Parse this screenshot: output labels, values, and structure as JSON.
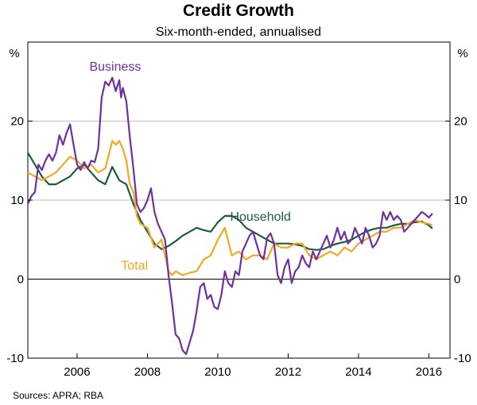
{
  "chart_data": {
    "type": "line",
    "title": "Credit Growth",
    "subtitle": "Six-month-ended, annualised",
    "unit_label_left": "%",
    "unit_label_right": "%",
    "ylim": [
      -10,
      30
    ],
    "yticks": [
      -10,
      0,
      10,
      20
    ],
    "y_tick_labels": [
      "-10",
      "0",
      "10",
      "20"
    ],
    "xlim": [
      2004.6,
      2016.6
    ],
    "xticks": [
      2006,
      2008,
      2010,
      2012,
      2014,
      2016
    ],
    "x_tick_labels": [
      "2006",
      "2008",
      "2010",
      "2012",
      "2014",
      "2016"
    ],
    "gridlines": [
      10,
      20
    ],
    "zero_line": 0,
    "source": "Sources:   APRA; RBA",
    "series": [
      {
        "name": "Business",
        "color": "#7030a0",
        "x": [
          2004.6,
          2004.7,
          2004.8,
          2004.9,
          2005.0,
          2005.1,
          2005.2,
          2005.3,
          2005.4,
          2005.5,
          2005.6,
          2005.7,
          2005.8,
          2005.9,
          2006.0,
          2006.1,
          2006.2,
          2006.3,
          2006.4,
          2006.5,
          2006.6,
          2006.7,
          2006.8,
          2006.9,
          2007.0,
          2007.1,
          2007.2,
          2007.25,
          2007.3,
          2007.4,
          2007.5,
          2007.6,
          2007.7,
          2007.8,
          2007.9,
          2008.0,
          2008.1,
          2008.2,
          2008.3,
          2008.4,
          2008.5,
          2008.6,
          2008.7,
          2008.8,
          2008.9,
          2009.0,
          2009.1,
          2009.2,
          2009.3,
          2009.4,
          2009.5,
          2009.6,
          2009.7,
          2009.8,
          2009.9,
          2010.0,
          2010.1,
          2010.2,
          2010.3,
          2010.4,
          2010.5,
          2010.6,
          2010.7,
          2010.8,
          2010.9,
          2011.0,
          2011.1,
          2011.2,
          2011.3,
          2011.4,
          2011.5,
          2011.6,
          2011.7,
          2011.8,
          2011.9,
          2012.0,
          2012.1,
          2012.2,
          2012.3,
          2012.4,
          2012.5,
          2012.6,
          2012.7,
          2012.8,
          2012.9,
          2013.0,
          2013.1,
          2013.2,
          2013.3,
          2013.4,
          2013.5,
          2013.6,
          2013.7,
          2013.8,
          2013.9,
          2014.0,
          2014.1,
          2014.2,
          2014.3,
          2014.4,
          2014.5,
          2014.6,
          2014.7,
          2014.8,
          2014.9,
          2015.0,
          2015.1,
          2015.2,
          2015.3,
          2015.4,
          2015.5,
          2015.6,
          2015.7,
          2015.8,
          2015.9,
          2016.0,
          2016.1
        ],
        "values": [
          9.5,
          10.5,
          11.0,
          14.5,
          13.8,
          15.0,
          15.8,
          15.0,
          16.0,
          18.2,
          17.0,
          18.5,
          19.6,
          17.0,
          14.5,
          13.8,
          14.8,
          14.0,
          15.0,
          14.8,
          16.5,
          23.0,
          25.0,
          24.5,
          25.5,
          23.8,
          25.2,
          23.0,
          24.2,
          22.5,
          18.0,
          14.0,
          9.5,
          8.5,
          9.0,
          10.0,
          11.5,
          8.5,
          7.0,
          6.0,
          5.0,
          0.5,
          -3.0,
          -7.0,
          -7.5,
          -9.0,
          -9.5,
          -8.0,
          -6.5,
          -4.0,
          -1.0,
          -0.5,
          -2.5,
          -2.0,
          -3.5,
          -3.8,
          -2.0,
          1.0,
          -0.5,
          -1.0,
          1.0,
          0.5,
          3.5,
          4.5,
          5.5,
          6.0,
          4.5,
          3.0,
          2.5,
          5.2,
          5.8,
          4.5,
          0.5,
          -0.5,
          1.5,
          2.5,
          -0.5,
          1.0,
          1.5,
          3.0,
          2.0,
          1.5,
          3.5,
          2.5,
          3.5,
          4.5,
          5.5,
          4.0,
          5.0,
          6.5,
          5.0,
          6.0,
          4.5,
          5.0,
          6.5,
          5.5,
          4.5,
          6.5,
          5.5,
          4.0,
          4.5,
          5.5,
          8.5,
          7.5,
          8.5,
          7.5,
          8.0,
          7.5,
          6.0,
          6.5,
          7.0,
          7.5,
          8.0,
          8.5,
          8.2,
          7.8,
          8.3
        ]
      },
      {
        "name": "Household",
        "color": "#1b5e3b",
        "x": [
          2004.6,
          2004.8,
          2005.0,
          2005.2,
          2005.4,
          2005.6,
          2005.8,
          2006.0,
          2006.2,
          2006.4,
          2006.6,
          2006.8,
          2007.0,
          2007.2,
          2007.4,
          2007.6,
          2007.8,
          2008.0,
          2008.2,
          2008.4,
          2008.6,
          2008.8,
          2009.0,
          2009.2,
          2009.4,
          2009.6,
          2009.8,
          2010.0,
          2010.2,
          2010.4,
          2010.6,
          2010.8,
          2011.0,
          2011.2,
          2011.4,
          2011.6,
          2011.8,
          2012.0,
          2012.2,
          2012.4,
          2012.6,
          2012.8,
          2013.0,
          2013.2,
          2013.4,
          2013.6,
          2013.8,
          2014.0,
          2014.2,
          2014.4,
          2014.6,
          2014.8,
          2015.0,
          2015.2,
          2015.4,
          2015.6,
          2015.8,
          2016.0,
          2016.1
        ],
        "values": [
          16.0,
          14.5,
          13.0,
          12.0,
          12.0,
          12.5,
          13.0,
          14.0,
          14.5,
          13.5,
          12.5,
          12.0,
          14.2,
          12.5,
          12.0,
          9.5,
          7.5,
          6.0,
          4.5,
          3.8,
          4.2,
          4.8,
          5.5,
          6.0,
          6.5,
          6.2,
          6.0,
          7.2,
          8.0,
          8.0,
          7.5,
          6.5,
          6.0,
          5.5,
          5.0,
          4.5,
          4.5,
          4.5,
          4.4,
          4.2,
          3.8,
          3.7,
          3.8,
          4.2,
          4.5,
          4.7,
          5.0,
          5.5,
          6.0,
          6.3,
          6.5,
          6.5,
          6.8,
          7.0,
          7.0,
          7.2,
          7.3,
          6.8,
          6.4
        ]
      },
      {
        "name": "Total",
        "color": "#f5a623",
        "x": [
          2004.6,
          2004.8,
          2005.0,
          2005.2,
          2005.4,
          2005.6,
          2005.8,
          2006.0,
          2006.2,
          2006.4,
          2006.6,
          2006.8,
          2007.0,
          2007.1,
          2007.2,
          2007.3,
          2007.4,
          2007.5,
          2007.6,
          2007.7,
          2007.8,
          2008.0,
          2008.2,
          2008.4,
          2008.6,
          2008.7,
          2008.8,
          2009.0,
          2009.2,
          2009.4,
          2009.6,
          2009.8,
          2010.0,
          2010.2,
          2010.4,
          2010.6,
          2010.8,
          2011.0,
          2011.2,
          2011.4,
          2011.6,
          2011.8,
          2012.0,
          2012.2,
          2012.4,
          2012.6,
          2012.8,
          2013.0,
          2013.2,
          2013.4,
          2013.6,
          2013.8,
          2014.0,
          2014.2,
          2014.4,
          2014.6,
          2014.8,
          2015.0,
          2015.2,
          2015.4,
          2015.6,
          2015.8,
          2016.0,
          2016.1
        ],
        "values": [
          13.5,
          13.0,
          12.5,
          13.0,
          13.5,
          14.5,
          15.5,
          15.0,
          14.0,
          14.5,
          13.5,
          14.0,
          17.5,
          17.0,
          17.5,
          16.5,
          15.0,
          12.0,
          11.0,
          8.0,
          7.0,
          6.5,
          4.0,
          5.0,
          1.0,
          0.5,
          1.0,
          0.5,
          0.8,
          1.0,
          2.5,
          3.0,
          5.0,
          6.5,
          3.0,
          3.5,
          2.5,
          3.0,
          3.0,
          2.5,
          4.5,
          4.0,
          4.0,
          4.5,
          4.5,
          3.0,
          2.5,
          3.0,
          3.5,
          3.0,
          4.0,
          3.5,
          4.5,
          5.0,
          5.5,
          6.0,
          6.0,
          6.5,
          6.5,
          7.0,
          7.5,
          7.2,
          7.0,
          6.8
        ]
      }
    ],
    "annotations": [
      {
        "text": "Business",
        "series": "Business",
        "x": 2006.35,
        "y": 26.4
      },
      {
        "text": "Household",
        "series": "Household",
        "x": 2010.35,
        "y": 7.4
      },
      {
        "text": "Total",
        "series": "Total",
        "x": 2007.25,
        "y": 1.2
      }
    ]
  }
}
